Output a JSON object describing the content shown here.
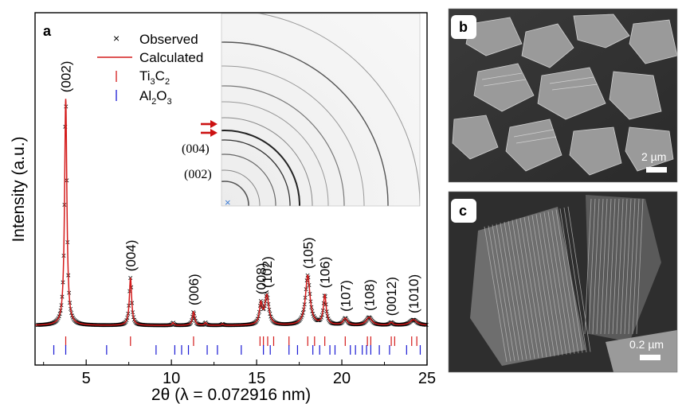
{
  "chart_data": {
    "type": "line",
    "panel_label": "a",
    "xlabel": "2θ (λ = 0.072916 nm)",
    "ylabel": "Intensity (a.u.)",
    "xlim": [
      2,
      25
    ],
    "xticks": [
      5,
      10,
      15,
      20,
      25
    ],
    "grid": false,
    "legend_position": "top-left",
    "legend": [
      {
        "symbol": "×",
        "label": "Observed"
      },
      {
        "symbol": "line",
        "label": "Calculated"
      },
      {
        "symbol": "red-tick",
        "label": "Ti3C2",
        "label_main": "Ti",
        "sub1": "3",
        "mid": "C",
        "sub2": "2"
      },
      {
        "symbol": "blue-tick",
        "label": "Al2O3",
        "label_main": "Al",
        "sub1": "2",
        "mid": "O",
        "sub2": "3"
      }
    ],
    "series": [
      {
        "name": "Calculated",
        "color": "#d41b1b"
      },
      {
        "name": "Observed",
        "color": "#000000",
        "marker": "x"
      }
    ],
    "baseline": 0.02,
    "peaks": [
      {
        "x": 3.8,
        "h": 1.0,
        "w": 0.08,
        "label": "(002)"
      },
      {
        "x": 7.6,
        "h": 0.21,
        "w": 0.08,
        "label": "(004)"
      },
      {
        "x": 11.3,
        "h": 0.06,
        "w": 0.08,
        "label": "(006)"
      },
      {
        "x": 15.25,
        "h": 0.09,
        "w": 0.1,
        "label": "(008)"
      },
      {
        "x": 15.6,
        "h": 0.13,
        "w": 0.14,
        "label": "(102)"
      },
      {
        "x": 18.0,
        "h": 0.22,
        "w": 0.16,
        "label": "(105)"
      },
      {
        "x": 19.0,
        "h": 0.13,
        "w": 0.1,
        "label": "(106)"
      },
      {
        "x": 20.2,
        "h": 0.03,
        "w": 0.14,
        "label": "(107)"
      },
      {
        "x": 21.6,
        "h": 0.035,
        "w": 0.2,
        "label": "(108)"
      },
      {
        "x": 22.9,
        "h": 0.012,
        "w": 0.12,
        "label": "(0012)"
      },
      {
        "x": 24.2,
        "h": 0.025,
        "w": 0.25,
        "label": "(1010)"
      },
      {
        "x": 10.1,
        "h": 0.012,
        "w": 0.06,
        "label": ""
      },
      {
        "x": 12.0,
        "h": 0.012,
        "w": 0.06,
        "label": ""
      },
      {
        "x": 13.0,
        "h": 0.006,
        "w": 0.06,
        "label": ""
      }
    ],
    "ti3c2_ticks": [
      3.8,
      7.6,
      11.3,
      15.2,
      15.4,
      15.65,
      16.0,
      16.9,
      18.0,
      18.4,
      19.0,
      20.2,
      21.5,
      21.7,
      22.9,
      23.1,
      24.1,
      24.4
    ],
    "al2o3_ticks": [
      3.1,
      3.8,
      6.2,
      9.1,
      10.2,
      10.6,
      11.0,
      12.1,
      12.7,
      14.1,
      15.4,
      15.8,
      16.9,
      17.4,
      18.3,
      18.7,
      19.3,
      19.6,
      20.5,
      20.8,
      21.2,
      21.45,
      21.7,
      22.2,
      22.8,
      23.8,
      24.6
    ]
  },
  "inset": {
    "labels": [
      "(004)",
      "(002)"
    ],
    "arrow_count": 2
  },
  "panels": [
    {
      "letter": "b",
      "scale_label": "2 µm"
    },
    {
      "letter": "c",
      "scale_label": "0.2 µm"
    }
  ]
}
